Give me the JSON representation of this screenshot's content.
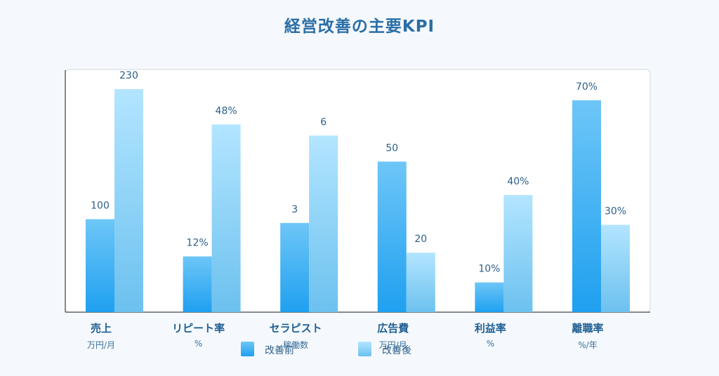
{
  "chart_data": {
    "type": "bar",
    "title": "経営改善の主要KPI",
    "categories": [
      {
        "name": "売上",
        "unit": "万円/月"
      },
      {
        "name": "リピート率",
        "unit": "%"
      },
      {
        "name": "セラピスト",
        "unit": "稼働数"
      },
      {
        "name": "広告費",
        "unit": "万円/月"
      },
      {
        "name": "利益率",
        "unit": "%"
      },
      {
        "name": "離職率",
        "unit": "%/年"
      }
    ],
    "series": [
      {
        "name": "改善前",
        "values": [
          100,
          12,
          3,
          50,
          10,
          70
        ],
        "labels": [
          "100",
          "12%",
          "3",
          "50",
          "10%",
          "70%"
        ],
        "scaled_heights": [
          0.5,
          0.3,
          0.48,
          0.81,
          0.16,
          1.14
        ]
      },
      {
        "name": "改善後",
        "values": [
          230,
          48,
          6,
          20,
          40,
          30
        ],
        "labels": [
          "230",
          "48%",
          "6",
          "20",
          "40%",
          "30%"
        ],
        "scaled_heights": [
          1.2,
          1.01,
          0.95,
          0.32,
          0.63,
          0.47
        ]
      }
    ],
    "value_scale": "per-category normalized",
    "legend_position": "bottom",
    "grid": false
  },
  "colors": {
    "title": "#2a6ea6",
    "series_before_top": "#6ec6f7",
    "series_before_bottom": "#1fa0f0",
    "series_after_top": "#b3e5ff",
    "series_after_bottom": "#6cc1ef"
  }
}
